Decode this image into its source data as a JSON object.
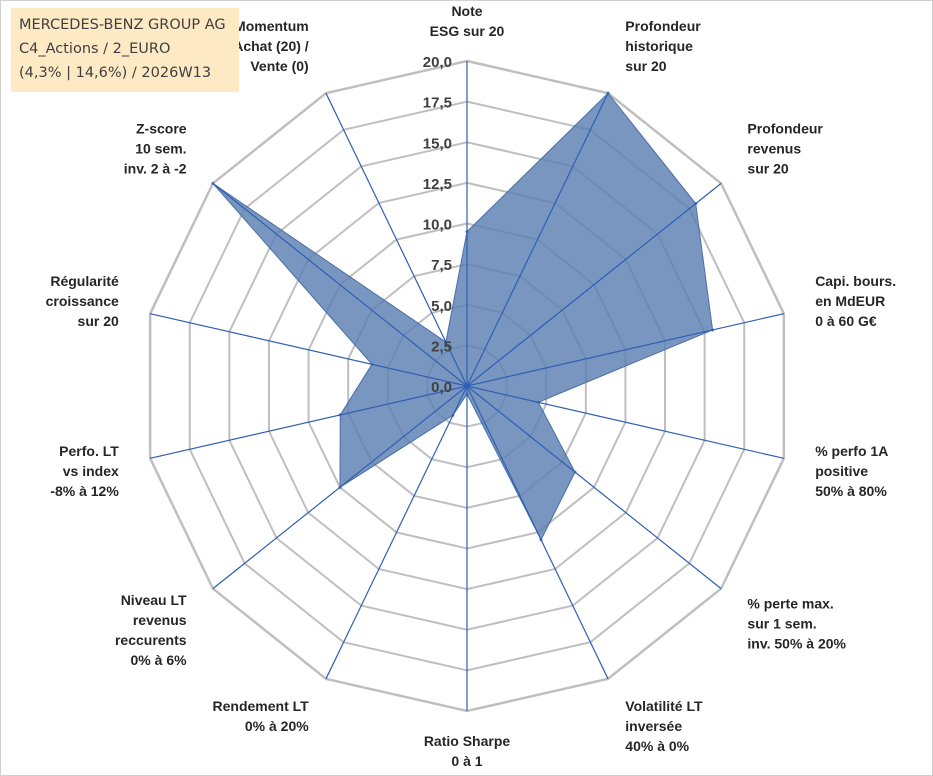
{
  "title": {
    "line1": "MERCEDES-BENZ GROUP AG",
    "line2": "C4_Actions / 2_EURO",
    "line3": "(4,3% | 14,6%) / 2026W13"
  },
  "colors": {
    "fill": "#5b7fb3",
    "grid": "#bfbfbf",
    "spoke": "#2f5fb3"
  },
  "chart_data": {
    "type": "radar",
    "rlim": [
      0,
      20
    ],
    "ticks": [
      "0,0",
      "2,5",
      "5,0",
      "7,5",
      "10,0",
      "12,5",
      "15,0",
      "17,5",
      "20,0"
    ],
    "categories": [
      [
        "Note",
        "ESG sur 20"
      ],
      [
        "Profondeur",
        "historique",
        "sur 20"
      ],
      [
        "Profondeur",
        "revenus",
        "sur 20"
      ],
      [
        "Capi. bours.",
        "en MdEUR",
        "0 à 60 G€"
      ],
      [
        "% perfo 1A",
        "positive",
        "50% à 80%"
      ],
      [
        "% perte max.",
        "sur 1 sem.",
        "inv. 50% à 20%"
      ],
      [
        "Volatilité LT",
        "inversée",
        "40% à 0%"
      ],
      [
        "Ratio Sharpe",
        "0 à 1"
      ],
      [
        "Rendement LT",
        "0% à 20%"
      ],
      [
        "Niveau LT",
        "revenus",
        "reccurents",
        "0% à 6%"
      ],
      [
        "Perfo. LT",
        "vs index",
        "-8% à 12%"
      ],
      [
        "Régularité",
        "croissance",
        "sur 20"
      ],
      [
        "Z-score",
        "10 sem.",
        "inv. 2 à -2"
      ],
      [
        "Momentum",
        "Achat (20) /",
        "Vente (0)"
      ]
    ],
    "series": [
      {
        "name": "MERCEDES-BENZ GROUP AG",
        "values": [
          9.5,
          20.0,
          18.0,
          15.5,
          4.5,
          8.5,
          10.5,
          0.5,
          2.0,
          10.0,
          8.0,
          6.0,
          20.0,
          3.0
        ]
      }
    ]
  }
}
